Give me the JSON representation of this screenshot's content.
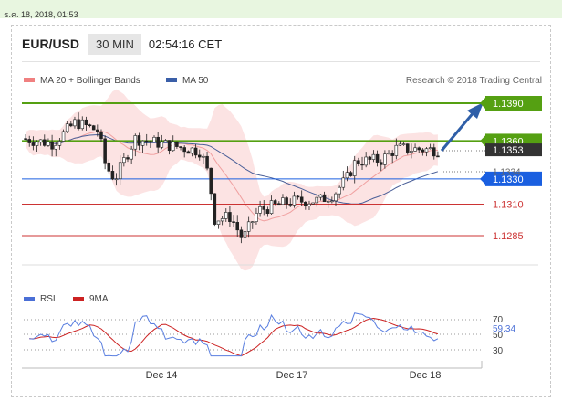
{
  "timestamp": "ธ.ค. 18, 2018, 01:53",
  "header": {
    "pair": "EUR/USD",
    "timeframe": "30 MIN",
    "time": "02:54:16 CET"
  },
  "legend": {
    "ma20_label": "MA 20 + Bollinger Bands",
    "ma50_label": "MA 50",
    "credit": "Research © 2018 Trading Central",
    "ma20_color": "#f08080",
    "ma50_color": "#3a5fa8"
  },
  "rsi_legend": {
    "rsi_label": "RSI",
    "ma9_label": "9MA",
    "rsi_color": "#4a6fd6",
    "ma9_color": "#cc2222"
  },
  "chart_data": {
    "type": "line",
    "price_axis_range": [
      1.127,
      1.14
    ],
    "levels": [
      {
        "label": "1.1390",
        "value": 1.139,
        "kind": "resistance-major",
        "color": "#55a012"
      },
      {
        "label": "1.1360",
        "value": 1.136,
        "kind": "resistance",
        "color": "#55a012"
      },
      {
        "label": "1.1330",
        "value": 1.133,
        "kind": "pivot",
        "color": "#1a5fe0"
      },
      {
        "label": "1.1310",
        "value": 1.131,
        "kind": "support",
        "color": "#cc3333"
      },
      {
        "label": "1.1285",
        "value": 1.1285,
        "kind": "support",
        "color": "#cc3333"
      }
    ],
    "last_price": {
      "label": "1.1353",
      "value": 1.1353
    },
    "ma50_value": {
      "label": "1.1334",
      "value": 1.1334
    },
    "x_labels": [
      "Dec 14",
      "Dec 17",
      "Dec 18"
    ],
    "rsi": {
      "ticks": [
        70,
        50,
        30
      ],
      "ylim": [
        0,
        100
      ],
      "last": "59.34"
    }
  }
}
